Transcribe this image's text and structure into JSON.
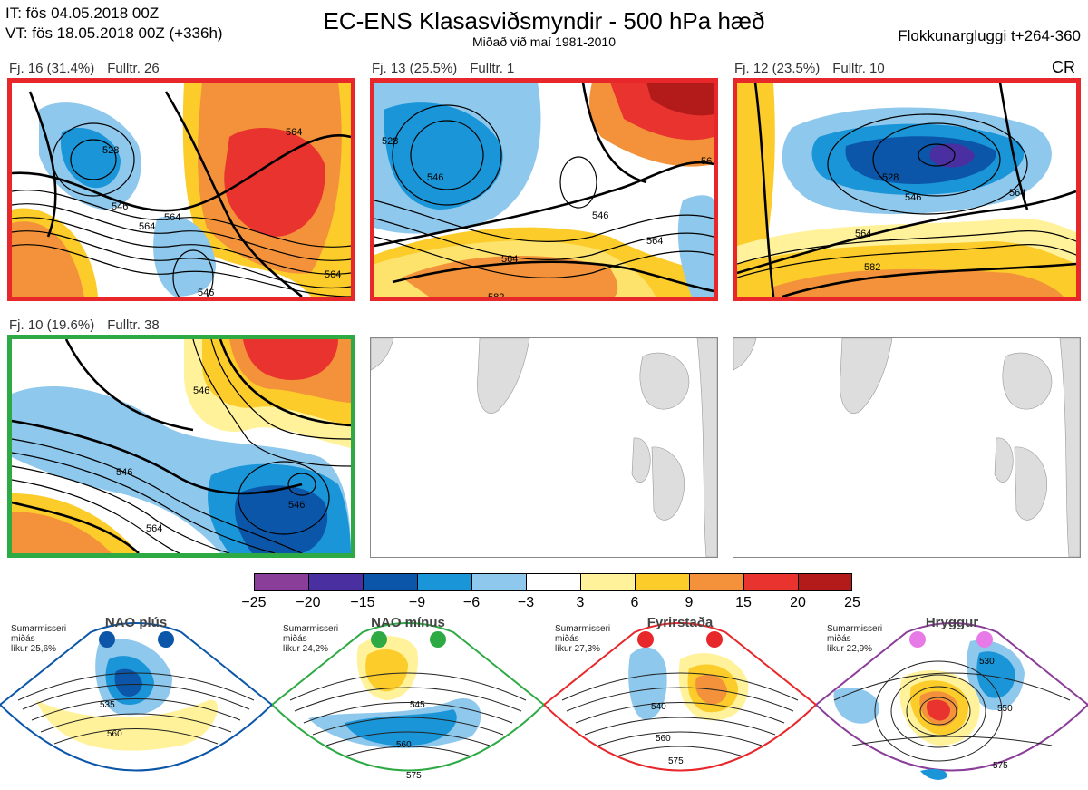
{
  "header": {
    "it_line": "IT: fös 04.05.2018 00Z",
    "vt_line": "VT: fös 18.05.2018 00Z  (+336h)",
    "title": "EC-ENS Klasasviðsmyndir - 500 hPa hæð",
    "subtitle": "Miðað við maí 1981-2010",
    "window": "Flokkunargluggi t+264-360",
    "cr": "CR"
  },
  "panels": [
    {
      "fj": "Fj. 16 (31.4%)",
      "fulltr": "Fulltr. 26",
      "border": "#e8272a",
      "contours": [
        "528",
        "546",
        "564",
        "564",
        "546",
        "564",
        "564"
      ]
    },
    {
      "fj": "Fj. 13 (25.5%)",
      "fulltr": "Fulltr. 1",
      "border": "#e8272a",
      "contours": [
        "528",
        "546",
        "546",
        "564",
        "564",
        "582",
        "56"
      ]
    },
    {
      "fj": "Fj. 12 (23.5%)",
      "fulltr": "Fulltr. 10",
      "border": "#e8272a",
      "contours": [
        "528",
        "546",
        "564",
        "564",
        "582"
      ]
    },
    {
      "fj": "Fj. 10 (19.6%)",
      "fulltr": "Fulltr. 38",
      "border": "#2eaa45",
      "contours": [
        "546",
        "546",
        "546",
        "564"
      ]
    }
  ],
  "colorbar": {
    "colors": [
      "#8a3d99",
      "#4a2fa0",
      "#0b56a8",
      "#1a95d8",
      "#8ec8ec",
      "#ffffff",
      "#fff29a",
      "#fbcc2a",
      "#f3923a",
      "#e8332e",
      "#b31b1b"
    ],
    "ticks": [
      "−25",
      "−20",
      "−15",
      "−9",
      "−6",
      "−3",
      "3",
      "6",
      "9",
      "15",
      "20",
      "25"
    ]
  },
  "regimes": [
    {
      "title": "NAO plús",
      "season": "Sumarmisseri",
      "median": "miðás",
      "prob": "líkur 25,6%",
      "color": "#0b56a8",
      "labels": [
        "535",
        "560"
      ]
    },
    {
      "title": "NAO mínus",
      "season": "Sumarmisseri",
      "median": "miðás",
      "prob": "líkur 24,2%",
      "color": "#2eaa45",
      "labels": [
        "545",
        "560",
        "575"
      ]
    },
    {
      "title": "Fyrirstaða",
      "season": "Sumarmisseri",
      "median": "miðás",
      "prob": "líkur 27,3%",
      "color": "#e8272a",
      "labels": [
        "540",
        "560",
        "575"
      ]
    },
    {
      "title": "Hryggur",
      "season": "Sumarmisseri",
      "median": "miðás",
      "prob": "líkur 22,9%",
      "color": "#e87ae8",
      "labels": [
        "530",
        "550",
        "575"
      ]
    }
  ]
}
